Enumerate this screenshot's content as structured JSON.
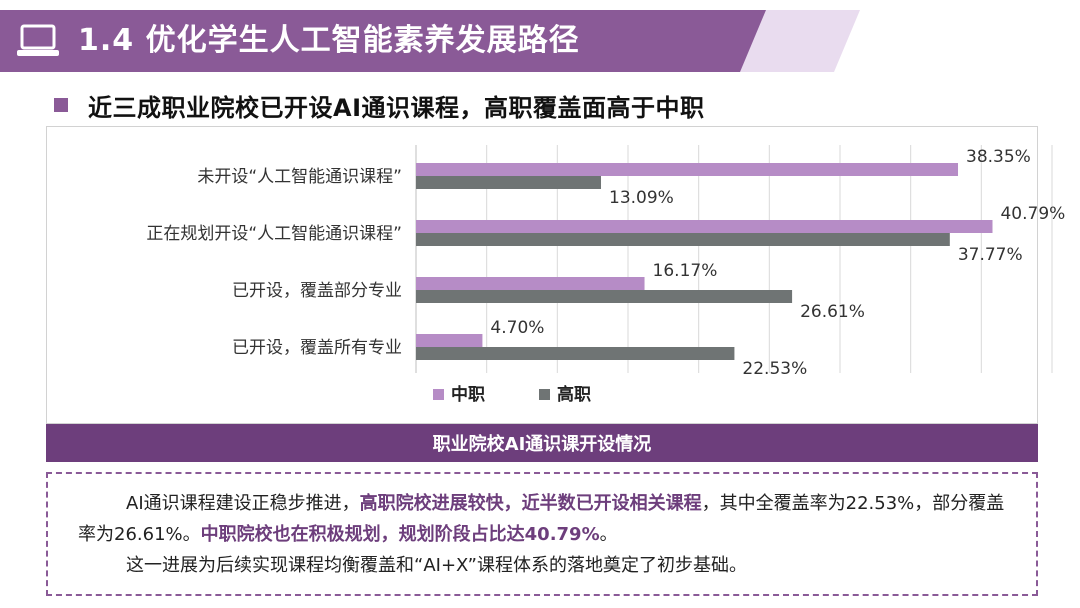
{
  "header": {
    "title": "1.4 优化学生人工智能素养发展路径"
  },
  "subtitle": "近三成职业院校已开设AI通识课程，高职覆盖面高于中职",
  "chart_caption": "职业院校AI通识课开设情况",
  "colors": {
    "accent": "#8a5a97",
    "secondary_school": "#b68cc6",
    "higher_vocational": "#6f7474",
    "caption_bg": "#6d3e7c"
  },
  "chart_data": {
    "type": "bar",
    "orientation": "horizontal",
    "categories": [
      "未开设“人工智能通识课程”",
      "正在规划开设“人工智能通识课程”",
      "已开设，覆盖部分专业",
      "已开设，覆盖所有专业"
    ],
    "series": [
      {
        "name": "中职",
        "values": [
          38.35,
          40.79,
          16.17,
          4.7
        ],
        "labels": [
          "38.35%",
          "40.79%",
          "16.17%",
          "4.70%"
        ]
      },
      {
        "name": "高职",
        "values": [
          13.09,
          37.77,
          26.61,
          22.53
        ],
        "labels": [
          "13.09%",
          "37.77%",
          "26.61%",
          "22.53%"
        ]
      }
    ],
    "xlim": [
      0,
      45
    ],
    "grid": true,
    "legend": "bottom-left"
  },
  "summary": {
    "p1_a": "AI通识课程建设正稳步推进，",
    "p1_b": "高职院校进展较快，近半数已开设相关课程",
    "p1_c": "，其中全覆盖率为22.53%，部分覆盖率为26.61%。",
    "p1_d": "中职院校也在积极规划，规划阶段占比达40.79%",
    "p1_e": "。",
    "p2": "这一进展为后续实现课程均衡覆盖和“AI+X”课程体系的落地奠定了初步基础。"
  }
}
